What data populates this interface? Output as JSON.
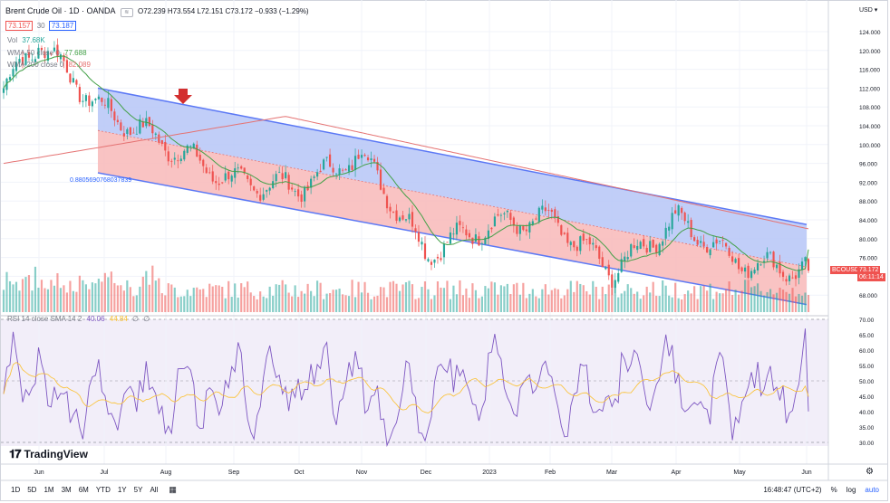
{
  "header": {
    "title": "Brent Crude Oil · 1D · OANDA",
    "ohlc": "O72.239 H73.554 L72.151 C73.172 −0.933 (−1.29%)",
    "bid": "73.157",
    "spread": "30",
    "ask": "73.187",
    "vol_label": "Vol",
    "vol_value": "37.68K",
    "wma50_label": "WMA 50 close 0",
    "wma50_value": "77.688",
    "wma200_label": "WMA 200 close 0",
    "wma200_value": "82.089",
    "channel_level": "0.8805690768037839",
    "currency": "USD"
  },
  "rsi_header": {
    "label": "RSI 14 close SMA 14 2",
    "rsi_value": "40.06",
    "sma_value": "44.84",
    "zero1": "∅",
    "zero2": "∅"
  },
  "price_tags": {
    "symbol": "BCOUSD",
    "price": "73.172",
    "countdown": "06:11:14"
  },
  "bottom_bar": {
    "ranges": [
      "1D",
      "5D",
      "1M",
      "3M",
      "6M",
      "YTD",
      "1Y",
      "5Y",
      "All"
    ],
    "time": "16:48:47 (UTC+2)",
    "pct": "%",
    "log": "log",
    "auto": "auto"
  },
  "branding": "TradingView",
  "colors": {
    "up": "#26a69a",
    "down": "#ef5350",
    "wma50": "#43a047",
    "wma200": "#e57373",
    "rsi": "#7e57c2",
    "rsi_sma": "#fbc02d",
    "channel_upper": "#5b78f5",
    "channel_fill_upper": "#b6c6f7",
    "channel_fill_lower": "#f8b8b8"
  },
  "chart_data": [
    {
      "type": "candlestick",
      "title": "Brent Crude Oil · 1D · OANDA",
      "x_ticks": [
        "Jun",
        "Jul",
        "Aug",
        "Sep",
        "Oct",
        "Nov",
        "Dec",
        "2023",
        "Feb",
        "Mar",
        "Apr",
        "May",
        "Jun"
      ],
      "y_ticks": [
        68,
        72,
        76,
        80,
        84,
        88,
        92,
        96,
        100,
        104,
        108,
        112,
        116,
        120,
        124
      ],
      "ylim": [
        65,
        128
      ],
      "close_keypoints": [
        {
          "x": "Jun",
          "close": 112
        },
        {
          "x": "mid-Jun",
          "close": 122
        },
        {
          "x": "Jul",
          "close": 108
        },
        {
          "x": "Aug",
          "close": 100
        },
        {
          "x": "Sep",
          "close": 92
        },
        {
          "x": "Oct",
          "close": 91
        },
        {
          "x": "Nov",
          "close": 98
        },
        {
          "x": "Dec",
          "close": 77
        },
        {
          "x": "2023",
          "close": 83
        },
        {
          "x": "Feb",
          "close": 84
        },
        {
          "x": "Mar",
          "close": 73
        },
        {
          "x": "Apr",
          "close": 84
        },
        {
          "x": "May",
          "close": 75
        },
        {
          "x": "Jun",
          "close": 73.2
        }
      ],
      "last_price": 73.172,
      "wma50_last": 77.688,
      "wma200_last": 82.089,
      "channel": {
        "upper_start": 112,
        "upper_end": 83,
        "mid_start": 103,
        "mid_end": 74,
        "lower_start": 94,
        "lower_end": 66
      }
    },
    {
      "type": "line",
      "title": "RSI 14 close SMA 14 2",
      "y_ticks": [
        30,
        35,
        40,
        45,
        50,
        55,
        60,
        65,
        70
      ],
      "ylim": [
        28,
        72
      ],
      "series": [
        {
          "name": "RSI",
          "last": 40.06
        },
        {
          "name": "SMA",
          "last": 44.84
        }
      ]
    }
  ]
}
